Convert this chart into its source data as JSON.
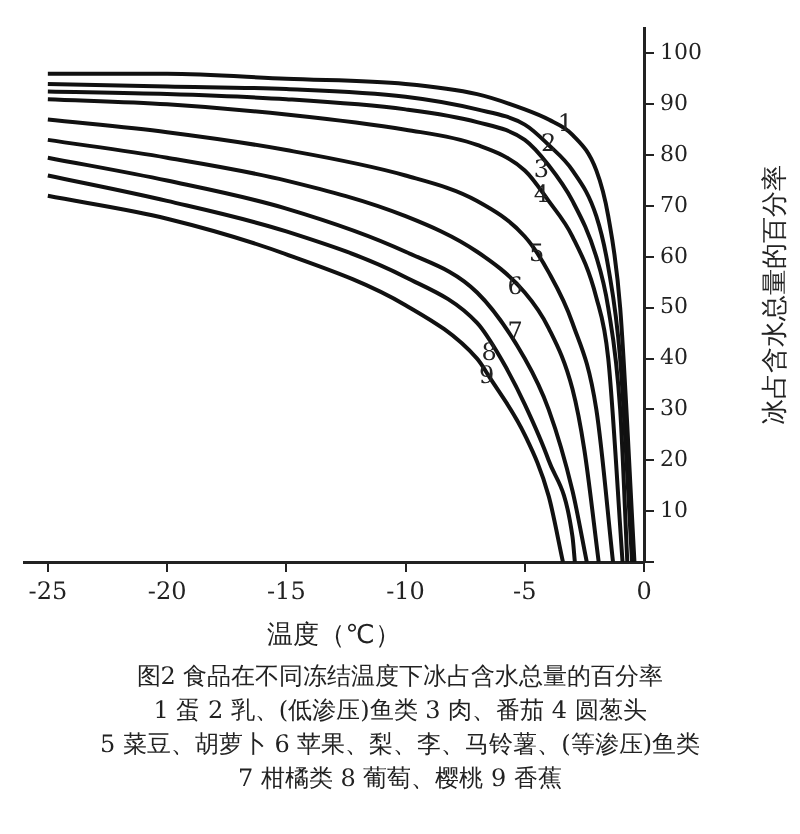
{
  "chart_data": {
    "type": "line",
    "title": "图2  食品在不同冻结温度下冰占含水总量的百分率",
    "xlabel": "温度（℃）",
    "ylabel": "冰占含水总量的百分率",
    "xlim": [
      -26,
      0
    ],
    "ylim": [
      0,
      105
    ],
    "xticks": [
      -25,
      -20,
      -15,
      -10,
      -5,
      0
    ],
    "yticks": [
      {
        "value": 0,
        "label": null
      },
      10,
      20,
      30,
      40,
      50,
      60,
      70,
      80,
      90,
      100
    ],
    "grid": false,
    "legend": false,
    "marker": "none",
    "line_style": "solid",
    "series": [
      {
        "color": "#111111",
        "x": [
          -25,
          -20,
          -15,
          -10,
          -7,
          -5,
          -4,
          -3,
          -2,
          -1.5,
          -1,
          -0.4
        ],
        "values": [
          96,
          96,
          95,
          94,
          92,
          89,
          87,
          84,
          77,
          68,
          50,
          0
        ]
      },
      {
        "color": "#111111",
        "x": [
          -25,
          -20,
          -15,
          -10,
          -7,
          -5,
          -4,
          -3,
          -2,
          -1.5,
          -1,
          -0.5
        ],
        "values": [
          94,
          93.5,
          93,
          91.5,
          89,
          86,
          82,
          77,
          68,
          58,
          40,
          0
        ]
      },
      {
        "color": "#111111",
        "x": [
          -25,
          -20,
          -15,
          -10,
          -7,
          -5,
          -4,
          -3,
          -2,
          -1.5,
          -1,
          -0.7
        ],
        "values": [
          92.5,
          92,
          91,
          89,
          86.5,
          83,
          78,
          71,
          60,
          50,
          30,
          0
        ]
      },
      {
        "color": "#111111",
        "x": [
          -25,
          -20,
          -15,
          -10,
          -7,
          -5,
          -4,
          -3,
          -2,
          -1.5,
          -0.9
        ],
        "values": [
          91,
          90,
          88,
          85,
          82,
          77,
          71,
          64,
          52,
          40,
          0
        ]
      },
      {
        "color": "#111111",
        "x": [
          -25,
          -20,
          -15,
          -10,
          -7,
          -5,
          -4,
          -3,
          -2,
          -1.3
        ],
        "values": [
          87,
          84.5,
          81,
          76,
          71,
          64,
          57,
          47,
          30,
          0
        ]
      },
      {
        "color": "#111111",
        "x": [
          -25,
          -20,
          -15,
          -10,
          -7,
          -5,
          -4,
          -3,
          -2.5,
          -1.9
        ],
        "values": [
          83,
          79.5,
          75,
          68,
          61,
          53,
          46,
          34,
          22,
          0
        ]
      },
      {
        "color": "#111111",
        "x": [
          -25,
          -20,
          -15,
          -10,
          -7,
          -5,
          -4,
          -3,
          -2.4
        ],
        "values": [
          79.5,
          75,
          69.5,
          61,
          53,
          40,
          30,
          14,
          0
        ]
      },
      {
        "color": "#111111",
        "x": [
          -25,
          -20,
          -15,
          -10,
          -7,
          -6,
          -5,
          -4,
          -3,
          -2.9
        ],
        "values": [
          76,
          71,
          65,
          56,
          47,
          40,
          31,
          20,
          5,
          0
        ]
      },
      {
        "color": "#111111",
        "x": [
          -25,
          -20,
          -15,
          -10,
          -7,
          -6.5,
          -5,
          -4,
          -3.4
        ],
        "values": [
          72,
          67.5,
          60.5,
          50.5,
          40,
          36.5,
          25,
          13,
          0
        ]
      }
    ],
    "annotations": [
      {
        "text": "1",
        "x": -3.3,
        "y": 86
      },
      {
        "text": "2",
        "x": -4,
        "y": 82
      },
      {
        "text": "3",
        "x": -4.3,
        "y": 77
      },
      {
        "text": "4",
        "x": -4.3,
        "y": 72
      },
      {
        "text": "5",
        "x": -4.5,
        "y": 60.5
      },
      {
        "text": "6",
        "x": -5.4,
        "y": 54
      },
      {
        "text": "7",
        "x": -5.4,
        "y": 45
      },
      {
        "text": "8",
        "x": -6.5,
        "y": 41
      },
      {
        "text": "9",
        "x": -6.6,
        "y": 36.5
      },
      "1 蛋  2 乳、(低渗压)鱼类  3 肉、番茄  4 圆葱头",
      "5 菜豆、胡萝卜  6 苹果、梨、李、马铃薯、(等渗压)鱼类",
      "7 柑橘类  8 葡萄、樱桃  9 香蕉"
    ]
  }
}
